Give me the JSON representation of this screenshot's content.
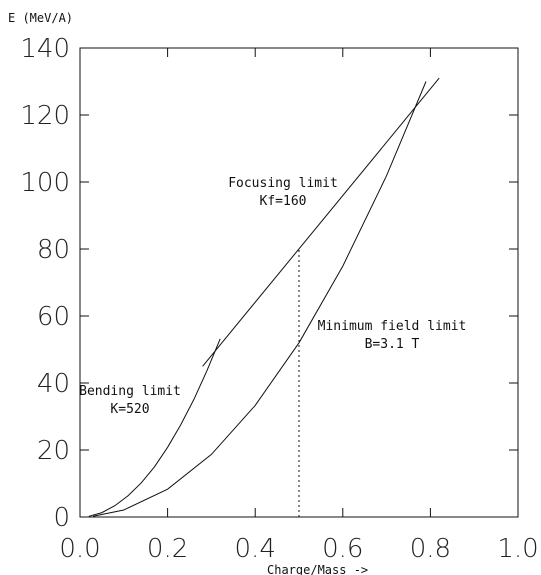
{
  "chart_data": {
    "type": "line",
    "title": "",
    "ylabel": "E (MeV/A)",
    "xlabel": "Charge/Mass  ->",
    "xlim": [
      0.0,
      1.0
    ],
    "ylim": [
      0,
      140
    ],
    "x_ticks": [
      "0.0",
      "0.2",
      "0.4",
      "0.6",
      "0.8",
      "1.0"
    ],
    "y_ticks": [
      "0",
      "20",
      "40",
      "60",
      "80",
      "100",
      "120",
      "140"
    ],
    "grid": false,
    "series": [
      {
        "key": "bending",
        "x": [
          0.02,
          0.05,
          0.08,
          0.11,
          0.14,
          0.17,
          0.2,
          0.23,
          0.26,
          0.29,
          0.32
        ],
        "y": [
          0.2,
          1.3,
          3.4,
          6.4,
          10.2,
          15.0,
          20.8,
          27.5,
          35.1,
          43.7,
          53.2
        ]
      },
      {
        "key": "focusing",
        "x": [
          0.28,
          0.82
        ],
        "y": [
          45,
          131
        ]
      },
      {
        "key": "minimum_field",
        "x": [
          0.03,
          0.1,
          0.2,
          0.3,
          0.4,
          0.5,
          0.6,
          0.7,
          0.79
        ],
        "y": [
          0.2,
          2.1,
          8.3,
          18.7,
          33.3,
          52.0,
          74.9,
          101.9,
          130
        ]
      }
    ],
    "annotations": [
      {
        "key": "focusing_limit",
        "lines": [
          "Focusing limit",
          "Kf=160"
        ]
      },
      {
        "key": "minimum_field_limit",
        "lines": [
          "Minimum field limit",
          "B=3.1 T"
        ]
      },
      {
        "key": "bending_limit",
        "lines": [
          "Bending limit",
          "K=520"
        ]
      }
    ],
    "reference_line": {
      "x": 0.5,
      "y_from": 0,
      "y_to": 80,
      "style": "dotted"
    }
  }
}
